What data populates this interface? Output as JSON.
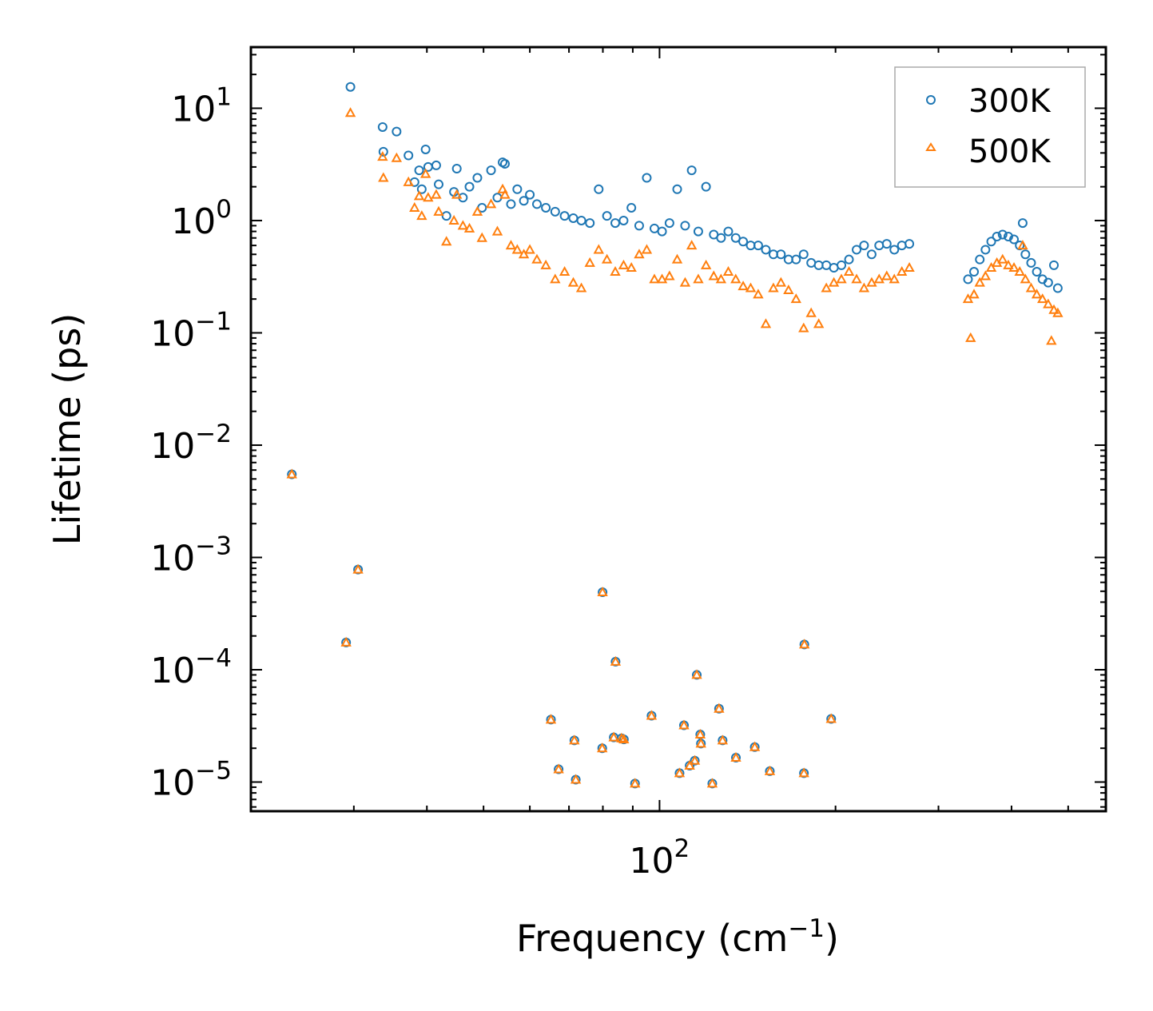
{
  "chart_data": {
    "type": "scatter",
    "scale": {
      "x": "log",
      "y": "log"
    },
    "xlabel": "Frequency (cm",
    "xlabel_sup": "−1",
    "xlabel_end": ")",
    "ylabel": "Lifetime (ps)",
    "xlim": [
      20,
      580
    ],
    "ylim": [
      5.5e-06,
      35
    ],
    "legend_position": "top-right",
    "x_tick_labels": [
      {
        "value": 100,
        "base": "10",
        "exp": "2"
      }
    ],
    "y_tick_labels": [
      {
        "value": 10,
        "base": "10",
        "exp": "1"
      },
      {
        "value": 1,
        "base": "10",
        "exp": "0"
      },
      {
        "value": 0.1,
        "base": "10",
        "exp": "−1"
      },
      {
        "value": 0.01,
        "base": "10",
        "exp": "−2"
      },
      {
        "value": 0.001,
        "base": "10",
        "exp": "−3"
      },
      {
        "value": 0.0001,
        "base": "10",
        "exp": "−4"
      },
      {
        "value": 1e-05,
        "base": "10",
        "exp": "−5"
      }
    ],
    "series": [
      {
        "name": "300K",
        "marker": "circle",
        "color": "#1f77b4",
        "points": [
          [
            23.5,
            0.0055
          ],
          [
            29.1,
            0.000175
          ],
          [
            29.6,
            15.5
          ],
          [
            30.5,
            0.00078
          ],
          [
            33.6,
            6.8
          ],
          [
            33.7,
            4.1
          ],
          [
            35.5,
            6.2
          ],
          [
            37.2,
            3.8
          ],
          [
            38.1,
            2.2
          ],
          [
            38.8,
            2.8
          ],
          [
            39.2,
            1.9
          ],
          [
            39.8,
            4.3
          ],
          [
            40.2,
            3.0
          ],
          [
            41.5,
            3.1
          ],
          [
            41.9,
            2.1
          ],
          [
            43.2,
            1.1
          ],
          [
            44.5,
            1.8
          ],
          [
            45.0,
            2.9
          ],
          [
            46.1,
            1.6
          ],
          [
            47.3,
            2.0
          ],
          [
            48.8,
            2.4
          ],
          [
            49.7,
            1.3
          ],
          [
            51.5,
            2.8
          ],
          [
            52.8,
            1.6
          ],
          [
            53.9,
            3.3
          ],
          [
            54.4,
            3.2
          ],
          [
            55.7,
            1.4
          ],
          [
            57.1,
            1.9
          ],
          [
            58.6,
            1.5
          ],
          [
            60.0,
            1.7
          ],
          [
            61.7,
            1.4
          ],
          [
            63.9,
            1.3
          ],
          [
            66.3,
            1.2
          ],
          [
            68.8,
            1.1
          ],
          [
            71.2,
            1.05
          ],
          [
            73.5,
            1.0
          ],
          [
            76.0,
            0.95
          ],
          [
            78.7,
            1.9
          ],
          [
            81.3,
            1.1
          ],
          [
            84.0,
            0.95
          ],
          [
            86.8,
            1.0
          ],
          [
            89.5,
            1.3
          ],
          [
            92.3,
            0.9
          ],
          [
            95.1,
            2.4
          ],
          [
            98.0,
            0.85
          ],
          [
            101.0,
            0.8
          ],
          [
            104.0,
            0.95
          ],
          [
            107.2,
            1.9
          ],
          [
            110.6,
            0.9
          ],
          [
            113.5,
            2.8
          ],
          [
            116.5,
            0.8
          ],
          [
            120.1,
            2.0
          ],
          [
            123.8,
            0.75
          ],
          [
            127.4,
            0.7
          ],
          [
            131.1,
            0.8
          ],
          [
            135.0,
            0.7
          ],
          [
            139.0,
            0.65
          ],
          [
            143.2,
            0.6
          ],
          [
            147.5,
            0.6
          ],
          [
            152.0,
            0.55
          ],
          [
            156.6,
            0.5
          ],
          [
            161.3,
            0.5
          ],
          [
            166.2,
            0.45
          ],
          [
            171.2,
            0.45
          ],
          [
            176.4,
            0.5
          ],
          [
            181.7,
            0.42
          ],
          [
            187.2,
            0.4
          ],
          [
            192.9,
            0.4
          ],
          [
            198.7,
            0.38
          ],
          [
            204.7,
            0.4
          ],
          [
            210.9,
            0.45
          ],
          [
            217.3,
            0.55
          ],
          [
            223.8,
            0.6
          ],
          [
            230.6,
            0.5
          ],
          [
            237.5,
            0.6
          ],
          [
            244.7,
            0.62
          ],
          [
            252.1,
            0.55
          ],
          [
            259.7,
            0.6
          ],
          [
            267.5,
            0.62
          ],
          [
            337.0,
            0.3
          ],
          [
            345.1,
            0.35
          ],
          [
            353.0,
            0.45
          ],
          [
            361.0,
            0.55
          ],
          [
            369.3,
            0.65
          ],
          [
            377.6,
            0.72
          ],
          [
            386.2,
            0.75
          ],
          [
            395.0,
            0.72
          ],
          [
            403.9,
            0.68
          ],
          [
            413.1,
            0.6
          ],
          [
            418.0,
            0.95
          ],
          [
            422.5,
            0.5
          ],
          [
            432.1,
            0.42
          ],
          [
            441.9,
            0.35
          ],
          [
            451.9,
            0.3
          ],
          [
            462.2,
            0.28
          ],
          [
            472.7,
            0.4
          ],
          [
            480.0,
            0.25
          ],
          [
            65.2,
            3.6e-05
          ],
          [
            67.2,
            1.3e-05
          ],
          [
            71.5,
            2.35e-05
          ],
          [
            71.9,
            1.05e-05
          ],
          [
            79.8,
            2e-05
          ],
          [
            79.9,
            0.00049
          ],
          [
            83.5,
            2.5e-05
          ],
          [
            84.1,
            0.000118
          ],
          [
            86.1,
            2.45e-05
          ],
          [
            86.9,
            2.4e-05
          ],
          [
            90.8,
            9.7e-06
          ],
          [
            96.9,
            3.9e-05
          ],
          [
            108.2,
            1.2e-05
          ],
          [
            110.1,
            3.2e-05
          ],
          [
            112.6,
            1.4e-05
          ],
          [
            114.9,
            1.55e-05
          ],
          [
            115.8,
            9e-05
          ],
          [
            117.4,
            2.65e-05
          ],
          [
            117.7,
            2.2e-05
          ],
          [
            123.1,
            9.7e-06
          ],
          [
            126.4,
            4.5e-05
          ],
          [
            128.2,
            2.35e-05
          ],
          [
            135.1,
            1.65e-05
          ],
          [
            145.5,
            2.05e-05
          ],
          [
            154.4,
            1.25e-05
          ],
          [
            176.6,
            1.2e-05
          ],
          [
            176.9,
            0.000168
          ],
          [
            196.6,
            3.65e-05
          ]
        ]
      },
      {
        "name": "500K",
        "marker": "triangle",
        "color": "#ff7f0e",
        "points": [
          [
            23.5,
            0.0055
          ],
          [
            29.1,
            0.000175
          ],
          [
            29.6,
            9.1
          ],
          [
            30.5,
            0.00078
          ],
          [
            33.6,
            3.7
          ],
          [
            33.7,
            2.4
          ],
          [
            35.5,
            3.6
          ],
          [
            37.2,
            2.2
          ],
          [
            38.1,
            1.3
          ],
          [
            38.8,
            1.65
          ],
          [
            39.2,
            1.1
          ],
          [
            39.8,
            2.6
          ],
          [
            40.2,
            1.6
          ],
          [
            41.5,
            1.7
          ],
          [
            41.9,
            1.2
          ],
          [
            43.2,
            0.65
          ],
          [
            44.5,
            1.0
          ],
          [
            45.0,
            1.7
          ],
          [
            46.1,
            0.9
          ],
          [
            47.3,
            0.85
          ],
          [
            48.8,
            1.2
          ],
          [
            49.7,
            0.7
          ],
          [
            51.5,
            1.4
          ],
          [
            52.8,
            0.8
          ],
          [
            53.9,
            1.9
          ],
          [
            54.4,
            1.7
          ],
          [
            55.7,
            0.6
          ],
          [
            57.1,
            0.55
          ],
          [
            58.6,
            0.5
          ],
          [
            60.0,
            0.55
          ],
          [
            61.7,
            0.45
          ],
          [
            63.9,
            0.4
          ],
          [
            66.3,
            0.3
          ],
          [
            68.8,
            0.35
          ],
          [
            71.2,
            0.28
          ],
          [
            73.5,
            0.25
          ],
          [
            76.0,
            0.42
          ],
          [
            78.7,
            0.55
          ],
          [
            81.3,
            0.45
          ],
          [
            84.0,
            0.35
          ],
          [
            86.8,
            0.4
          ],
          [
            89.5,
            0.38
          ],
          [
            92.3,
            0.5
          ],
          [
            95.1,
            0.55
          ],
          [
            98.0,
            0.3
          ],
          [
            101.0,
            0.3
          ],
          [
            104.0,
            0.32
          ],
          [
            107.2,
            0.45
          ],
          [
            110.6,
            0.28
          ],
          [
            113.5,
            0.6
          ],
          [
            116.5,
            0.3
          ],
          [
            120.1,
            0.4
          ],
          [
            123.8,
            0.32
          ],
          [
            127.4,
            0.3
          ],
          [
            131.1,
            0.35
          ],
          [
            135.0,
            0.3
          ],
          [
            139.0,
            0.26
          ],
          [
            143.2,
            0.25
          ],
          [
            147.5,
            0.22
          ],
          [
            152.0,
            0.12
          ],
          [
            156.6,
            0.25
          ],
          [
            161.3,
            0.28
          ],
          [
            166.2,
            0.24
          ],
          [
            171.2,
            0.2
          ],
          [
            176.4,
            0.11
          ],
          [
            181.7,
            0.15
          ],
          [
            187.2,
            0.12
          ],
          [
            192.9,
            0.25
          ],
          [
            198.7,
            0.28
          ],
          [
            204.7,
            0.3
          ],
          [
            210.9,
            0.35
          ],
          [
            217.3,
            0.3
          ],
          [
            223.8,
            0.25
          ],
          [
            230.6,
            0.28
          ],
          [
            237.5,
            0.3
          ],
          [
            244.7,
            0.32
          ],
          [
            252.1,
            0.3
          ],
          [
            259.7,
            0.35
          ],
          [
            267.5,
            0.38
          ],
          [
            337.0,
            0.2
          ],
          [
            345.1,
            0.22
          ],
          [
            353.0,
            0.28
          ],
          [
            361.0,
            0.32
          ],
          [
            369.3,
            0.38
          ],
          [
            377.6,
            0.42
          ],
          [
            386.2,
            0.45
          ],
          [
            395.0,
            0.4
          ],
          [
            403.9,
            0.38
          ],
          [
            413.1,
            0.35
          ],
          [
            418.0,
            0.6
          ],
          [
            422.5,
            0.3
          ],
          [
            432.1,
            0.25
          ],
          [
            441.9,
            0.22
          ],
          [
            451.9,
            0.2
          ],
          [
            462.2,
            0.18
          ],
          [
            472.7,
            0.16
          ],
          [
            480.0,
            0.15
          ],
          [
            340.5,
            0.09
          ],
          [
            468.0,
            0.085
          ],
          [
            65.2,
            3.6e-05
          ],
          [
            67.2,
            1.3e-05
          ],
          [
            71.5,
            2.35e-05
          ],
          [
            71.9,
            1.05e-05
          ],
          [
            79.8,
            2e-05
          ],
          [
            79.9,
            0.00049
          ],
          [
            83.5,
            2.5e-05
          ],
          [
            84.1,
            0.000118
          ],
          [
            86.1,
            2.45e-05
          ],
          [
            86.9,
            2.4e-05
          ],
          [
            90.8,
            9.7e-06
          ],
          [
            96.9,
            3.9e-05
          ],
          [
            108.2,
            1.2e-05
          ],
          [
            110.1,
            3.2e-05
          ],
          [
            112.6,
            1.4e-05
          ],
          [
            114.9,
            1.55e-05
          ],
          [
            115.8,
            9e-05
          ],
          [
            117.4,
            2.65e-05
          ],
          [
            117.7,
            2.2e-05
          ],
          [
            123.1,
            9.7e-06
          ],
          [
            126.4,
            4.5e-05
          ],
          [
            128.2,
            2.35e-05
          ],
          [
            135.1,
            1.65e-05
          ],
          [
            145.5,
            2.05e-05
          ],
          [
            154.4,
            1.25e-05
          ],
          [
            176.6,
            1.2e-05
          ],
          [
            176.9,
            0.000168
          ],
          [
            196.6,
            3.65e-05
          ]
        ]
      }
    ]
  }
}
